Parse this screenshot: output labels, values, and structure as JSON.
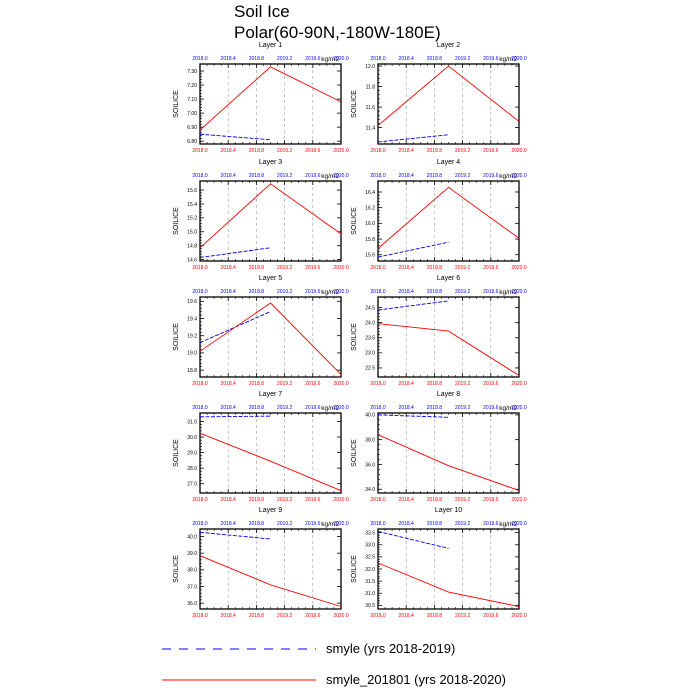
{
  "figure": {
    "title_line1": "Soil Ice",
    "title_line2": "Polar(60-90N,-180W-180E)",
    "units": "kg/m2",
    "ylabel": "SOILICE",
    "colors": {
      "series_a": "#0000ff",
      "series_b": "#ff0000",
      "bottom_ticks": "#ff0000",
      "top_ticks": "#0000ff",
      "grid": "#999999"
    }
  },
  "legend": [
    {
      "label": "smyle (yrs 2018-2019)",
      "color": "#0000ff",
      "style": "dashed"
    },
    {
      "label": "smyle_201801 (yrs 2018-2020)",
      "color": "#ff0000",
      "style": "solid"
    }
  ],
  "chart_data": [
    {
      "type": "line",
      "title": "Layer 1",
      "xlabel": "",
      "ylabel": "SOILICE",
      "xlim": [
        2018.0,
        2020.0
      ],
      "xticks": [
        "2018.0",
        "2018.4",
        "2018.8",
        "2019.2",
        "2019.6",
        "2020.0"
      ],
      "ylim": [
        6.78,
        7.35
      ],
      "yticks": [
        "6.80",
        "6.90",
        "7.00",
        "7.10",
        "7.20",
        "7.30"
      ],
      "series": [
        {
          "name": "smyle (yrs 2018-2019)",
          "x": [
            2018.0,
            2019.0
          ],
          "y": [
            6.85,
            6.81
          ]
        },
        {
          "name": "smyle_201801 (yrs 2018-2020)",
          "x": [
            2018.0,
            2019.0,
            2020.0
          ],
          "y": [
            6.88,
            7.33,
            7.08
          ]
        }
      ]
    },
    {
      "type": "line",
      "title": "Layer 2",
      "xlabel": "",
      "ylabel": "SOILICE",
      "xlim": [
        2018.0,
        2020.0
      ],
      "xticks": [
        "2018.0",
        "2018.4",
        "2018.8",
        "2019.2",
        "2019.6",
        "2020.0"
      ],
      "ylim": [
        11.24,
        12.02
      ],
      "yticks": [
        "11.4",
        "11.6",
        "11.8",
        "12.0"
      ],
      "series": [
        {
          "name": "smyle (yrs 2018-2019)",
          "x": [
            2018.0,
            2019.0
          ],
          "y": [
            11.26,
            11.33
          ]
        },
        {
          "name": "smyle_201801 (yrs 2018-2020)",
          "x": [
            2018.0,
            2019.0,
            2020.0
          ],
          "y": [
            11.42,
            12.0,
            11.46
          ]
        }
      ]
    },
    {
      "type": "line",
      "title": "Layer 3",
      "xlabel": "",
      "ylabel": "SOILICE",
      "xlim": [
        2018.0,
        2020.0
      ],
      "xticks": [
        "2018.0",
        "2018.4",
        "2018.8",
        "2019.2",
        "2019.6",
        "2020.0"
      ],
      "ylim": [
        14.58,
        15.73
      ],
      "yticks": [
        "14.6",
        "14.8",
        "15.0",
        "15.2",
        "15.4",
        "15.6"
      ],
      "series": [
        {
          "name": "smyle (yrs 2018-2019)",
          "x": [
            2018.0,
            2019.0
          ],
          "y": [
            14.63,
            14.77
          ]
        },
        {
          "name": "smyle_201801 (yrs 2018-2020)",
          "x": [
            2018.0,
            2019.0,
            2020.0
          ],
          "y": [
            14.77,
            15.69,
            14.97
          ]
        }
      ]
    },
    {
      "type": "line",
      "title": "Layer 4",
      "xlabel": "",
      "ylabel": "SOILICE",
      "xlim": [
        2018.0,
        2020.0
      ],
      "xticks": [
        "2018.0",
        "2018.4",
        "2018.8",
        "2019.2",
        "2019.6",
        "2020.0"
      ],
      "ylim": [
        15.52,
        16.54
      ],
      "yticks": [
        "15.6",
        "15.8",
        "16.0",
        "16.2",
        "16.4"
      ],
      "series": [
        {
          "name": "smyle (yrs 2018-2019)",
          "x": [
            2018.0,
            2019.0
          ],
          "y": [
            15.57,
            15.76
          ]
        },
        {
          "name": "smyle_201801 (yrs 2018-2020)",
          "x": [
            2018.0,
            2019.0,
            2020.0
          ],
          "y": [
            15.68,
            16.46,
            15.81
          ]
        }
      ]
    },
    {
      "type": "line",
      "title": "Layer 5",
      "xlabel": "",
      "ylabel": "SOILICE",
      "xlim": [
        2018.0,
        2020.0
      ],
      "xticks": [
        "2018.0",
        "2018.4",
        "2018.8",
        "2019.2",
        "2019.6",
        "2020.0"
      ],
      "ylim": [
        18.72,
        19.65
      ],
      "yticks": [
        "18.8",
        "19.0",
        "19.2",
        "19.4",
        "19.6"
      ],
      "series": [
        {
          "name": "smyle (yrs 2018-2019)",
          "x": [
            2018.0,
            2019.0
          ],
          "y": [
            19.12,
            19.48
          ]
        },
        {
          "name": "smyle_201801 (yrs 2018-2020)",
          "x": [
            2018.0,
            2019.0,
            2020.0
          ],
          "y": [
            19.02,
            19.58,
            18.75
          ]
        }
      ]
    },
    {
      "type": "line",
      "title": "Layer 6",
      "xlabel": "",
      "ylabel": "SOILICE",
      "xlim": [
        2018.0,
        2020.0
      ],
      "xticks": [
        "2018.0",
        "2018.4",
        "2018.8",
        "2019.2",
        "2019.6",
        "2020.0"
      ],
      "ylim": [
        22.2,
        24.85
      ],
      "yticks": [
        "22.5",
        "23.0",
        "23.5",
        "24.0",
        "24.5"
      ],
      "series": [
        {
          "name": "smyle (yrs 2018-2019)",
          "x": [
            2018.0,
            2019.0
          ],
          "y": [
            24.42,
            24.72
          ]
        },
        {
          "name": "smyle_201801 (yrs 2018-2020)",
          "x": [
            2018.0,
            2019.0,
            2020.0
          ],
          "y": [
            23.97,
            23.72,
            22.25
          ]
        }
      ]
    },
    {
      "type": "line",
      "title": "Layer 7",
      "xlabel": "",
      "ylabel": "SOILICE",
      "xlim": [
        2018.0,
        2020.0
      ],
      "xticks": [
        "2018.0",
        "2018.4",
        "2018.8",
        "2019.2",
        "2019.6",
        "2020.0"
      ],
      "ylim": [
        26.4,
        31.55
      ],
      "yticks": [
        "27.0",
        "28.0",
        "29.0",
        "30.0",
        "31.0"
      ],
      "series": [
        {
          "name": "smyle (yrs 2018-2019)",
          "x": [
            2018.0,
            2019.0
          ],
          "y": [
            31.3,
            31.35
          ]
        },
        {
          "name": "smyle_201801 (yrs 2018-2020)",
          "x": [
            2018.0,
            2019.0,
            2020.0
          ],
          "y": [
            30.25,
            28.45,
            26.55
          ]
        }
      ]
    },
    {
      "type": "line",
      "title": "Layer 8",
      "xlabel": "",
      "ylabel": "SOILICE",
      "xlim": [
        2018.0,
        2020.0
      ],
      "xticks": [
        "2018.0",
        "2018.4",
        "2018.8",
        "2019.2",
        "2019.6",
        "2020.0"
      ],
      "ylim": [
        33.7,
        40.15
      ],
      "yticks": [
        "34.0",
        "36.0",
        "38.0",
        "40.0"
      ],
      "series": [
        {
          "name": "smyle (yrs 2018-2019)",
          "x": [
            2018.0,
            2019.0
          ],
          "y": [
            40.0,
            39.8
          ]
        },
        {
          "name": "smyle_201801 (yrs 2018-2020)",
          "x": [
            2018.0,
            2019.0,
            2020.0
          ],
          "y": [
            38.4,
            35.9,
            33.9
          ]
        }
      ]
    },
    {
      "type": "line",
      "title": "Layer 9",
      "xlabel": "",
      "ylabel": "SOILICE",
      "xlim": [
        2018.0,
        2020.0
      ],
      "xticks": [
        "2018.0",
        "2018.4",
        "2018.8",
        "2019.2",
        "2019.6",
        "2020.0"
      ],
      "ylim": [
        35.65,
        40.45
      ],
      "yticks": [
        "36.0",
        "37.0",
        "38.0",
        "39.0",
        "40.0"
      ],
      "series": [
        {
          "name": "smyle (yrs 2018-2019)",
          "x": [
            2018.0,
            2019.0
          ],
          "y": [
            40.25,
            39.85
          ]
        },
        {
          "name": "smyle_201801 (yrs 2018-2020)",
          "x": [
            2018.0,
            2019.0,
            2020.0
          ],
          "y": [
            38.85,
            37.1,
            35.8
          ]
        }
      ]
    },
    {
      "type": "line",
      "title": "Layer 10",
      "xlabel": "",
      "ylabel": "SOILICE",
      "xlim": [
        2018.0,
        2020.0
      ],
      "xticks": [
        "2018.0",
        "2018.4",
        "2018.8",
        "2019.2",
        "2019.6",
        "2020.0"
      ],
      "ylim": [
        30.35,
        33.65
      ],
      "yticks": [
        "30.5",
        "31.0",
        "31.5",
        "32.0",
        "32.5",
        "33.0",
        "33.5"
      ],
      "series": [
        {
          "name": "smyle (yrs 2018-2019)",
          "x": [
            2018.0,
            2019.0
          ],
          "y": [
            33.55,
            32.85
          ]
        },
        {
          "name": "smyle_201801 (yrs 2018-2020)",
          "x": [
            2018.0,
            2019.0,
            2020.0
          ],
          "y": [
            32.25,
            31.05,
            30.45
          ]
        }
      ]
    }
  ]
}
